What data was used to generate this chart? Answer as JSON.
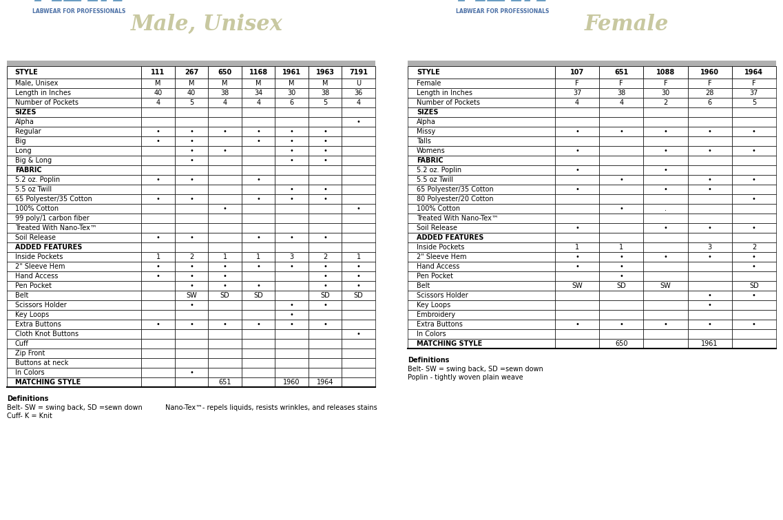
{
  "male_title": "Male, Unisex",
  "female_title": "Female",
  "male_cols": [
    "STYLE",
    "111",
    "267",
    "650",
    "1168",
    "1961",
    "1963",
    "7191"
  ],
  "female_cols": [
    "STYLE",
    "107",
    "651",
    "1088",
    "1960",
    "1964"
  ],
  "male_rows": [
    [
      "Male, Unisex",
      "M",
      "M",
      "M",
      "M",
      "M",
      "M",
      "U"
    ],
    [
      "Length in Inches",
      "40",
      "40",
      "38",
      "34",
      "30",
      "38",
      "36"
    ],
    [
      "Number of Pockets",
      "4",
      "5",
      "4",
      "4",
      "6",
      "5",
      "4"
    ],
    [
      "SIZES",
      "",
      "",
      "",
      "",
      "",
      "",
      ""
    ],
    [
      "Alpha",
      "",
      "",
      "",
      "",
      "",
      "",
      "•"
    ],
    [
      "Regular",
      "•",
      "•",
      "•",
      "•",
      "•",
      "•",
      ""
    ],
    [
      "Big",
      "•",
      "•",
      "",
      "•",
      "•",
      "•",
      ""
    ],
    [
      "Long",
      "",
      "•",
      "•",
      "",
      "•",
      "•",
      ""
    ],
    [
      "Big & Long",
      "",
      "•",
      "",
      "",
      "•",
      "•",
      ""
    ],
    [
      "FABRIC",
      "",
      "",
      "",
      "",
      "",
      "",
      ""
    ],
    [
      "5.2 oz. Poplin",
      "•",
      "•",
      "",
      "•",
      "",
      "",
      ""
    ],
    [
      "5.5 oz Twill",
      "",
      "",
      "",
      "",
      "•",
      "•",
      ""
    ],
    [
      "65 Polyester/35 Cotton",
      "•",
      "•",
      "",
      "•",
      "•",
      "•",
      ""
    ],
    [
      "100% Cotton",
      "",
      "",
      "•",
      "",
      "",
      "",
      "•"
    ],
    [
      "99 poly/1 carbon fiber",
      "",
      "",
      "",
      "",
      "",
      "",
      ""
    ],
    [
      "Treated With Nano-Tex™",
      "",
      "",
      "",
      "",
      "",
      "",
      ""
    ],
    [
      "Soil Release",
      "•",
      "•",
      "",
      "•",
      "•",
      "•",
      ""
    ],
    [
      "ADDED FEATURES",
      "",
      "",
      "",
      "",
      "",
      "",
      ""
    ],
    [
      "Inside Pockets",
      "1",
      "2",
      "1",
      "1",
      "3",
      "2",
      "1"
    ],
    [
      "2\" Sleeve Hem",
      "•",
      "•",
      "•",
      "•",
      "•",
      "•",
      "•"
    ],
    [
      "Hand Access",
      "•",
      "•",
      "•",
      "",
      "",
      "•",
      "•"
    ],
    [
      "Pen Pocket",
      "",
      "•",
      "•",
      "•",
      "",
      "•",
      "•"
    ],
    [
      "Belt",
      "",
      "SW",
      "SD",
      "SD",
      "",
      "SD",
      "SD"
    ],
    [
      "Scissors Holder",
      "",
      "•",
      "",
      "",
      "•",
      "•",
      ""
    ],
    [
      "Key Loops",
      "",
      "",
      "",
      "",
      "•",
      "",
      ""
    ],
    [
      "Extra Buttons",
      "•",
      "•",
      "•",
      "•",
      "•",
      "•",
      ""
    ],
    [
      "Cloth Knot Buttons",
      "",
      "",
      "",
      "",
      "",
      "",
      "•"
    ],
    [
      "Cuff",
      "",
      "",
      "",
      "",
      "",
      "",
      ""
    ],
    [
      "Zip Front",
      "",
      "",
      "",
      "",
      "",
      "",
      ""
    ],
    [
      "Buttons at neck",
      "",
      "",
      "",
      "",
      "",
      "",
      ""
    ],
    [
      "In Colors",
      "",
      "•",
      "",
      "",
      "",
      "",
      ""
    ],
    [
      "MATCHING STYLE",
      "",
      "",
      "651",
      "",
      "1960",
      "1964",
      ""
    ]
  ],
  "female_rows": [
    [
      "Female",
      "F",
      "F",
      "F",
      "F",
      "F"
    ],
    [
      "Length in Inches",
      "37",
      "38",
      "30",
      "28",
      "37"
    ],
    [
      "Number of Pockets",
      "4",
      "4",
      "2",
      "6",
      "5"
    ],
    [
      "SIZES",
      "",
      "",
      "",
      "",
      ""
    ],
    [
      "Alpha",
      "",
      "",
      "",
      "",
      ""
    ],
    [
      "Missy",
      "•",
      "•",
      "•",
      "•",
      "•"
    ],
    [
      "Talls",
      "",
      "",
      "",
      "",
      ""
    ],
    [
      "Womens",
      "•",
      "",
      "•",
      "•",
      "•"
    ],
    [
      "FABRIC",
      "",
      "",
      "",
      "",
      ""
    ],
    [
      "5.2 oz. Poplin",
      "•",
      "",
      "•",
      "",
      ""
    ],
    [
      "5.5 oz Twill",
      "",
      "•",
      "",
      "•",
      "•"
    ],
    [
      "65 Polyester/35 Cotton",
      "•",
      "",
      "•",
      "•",
      ""
    ],
    [
      "80 Polyester/20 Cotton",
      "",
      "",
      "",
      "",
      "•"
    ],
    [
      "100% Cotton",
      "",
      "•",
      ".",
      "",
      ""
    ],
    [
      "Treated With Nano-Tex™",
      "",
      "",
      "",
      "",
      ""
    ],
    [
      "Soil Release",
      "•",
      "",
      "•",
      "•",
      "•"
    ],
    [
      "ADDED FEATURES",
      "",
      "",
      "",
      "",
      ""
    ],
    [
      "Inside Pockets",
      "1",
      "1",
      "",
      "3",
      "2"
    ],
    [
      "2\" Sleeve Hem",
      "•",
      "•",
      "•",
      "•",
      "•"
    ],
    [
      "Hand Access",
      "•",
      "•",
      "",
      "",
      "•"
    ],
    [
      "Pen Pocket",
      "",
      "•",
      "",
      "",
      ""
    ],
    [
      "Belt",
      "SW",
      "SD",
      "SW",
      "",
      "SD"
    ],
    [
      "Scissors Holder",
      "",
      "",
      "",
      "•",
      "•"
    ],
    [
      "Key Loops",
      "",
      "",
      "",
      "•",
      ""
    ],
    [
      "Embroidery",
      "",
      "",
      "",
      "",
      ""
    ],
    [
      "Extra Buttons",
      "•",
      "•",
      "•",
      "•",
      "•"
    ],
    [
      "In Colors",
      "",
      "",
      "",
      "",
      ""
    ],
    [
      "MATCHING STYLE",
      "",
      "650",
      "",
      "1961",
      ""
    ]
  ],
  "bold_rows": [
    "SIZES",
    "FABRIC",
    "ADDED FEATURES",
    "MATCHING STYLE"
  ],
  "male_def1": "Definitions",
  "male_def2": "Belt- SW = swing back, SD =sewn down",
  "male_def3": "Cuff- K = Knit",
  "male_def4": "Nano-Tex™- repels liquids, resists wrinkles, and releases stains",
  "female_def1": "Definitions",
  "female_def2": "Belt- SW = swing back, SD =sewn down",
  "female_def3": "Poplin - tightly woven plain weave",
  "meta_color": "#6B9DC2",
  "meta_sub_color": "#4A6FA5",
  "title_color_male": "#C8C8A0",
  "title_color_female": "#C8C8A0"
}
